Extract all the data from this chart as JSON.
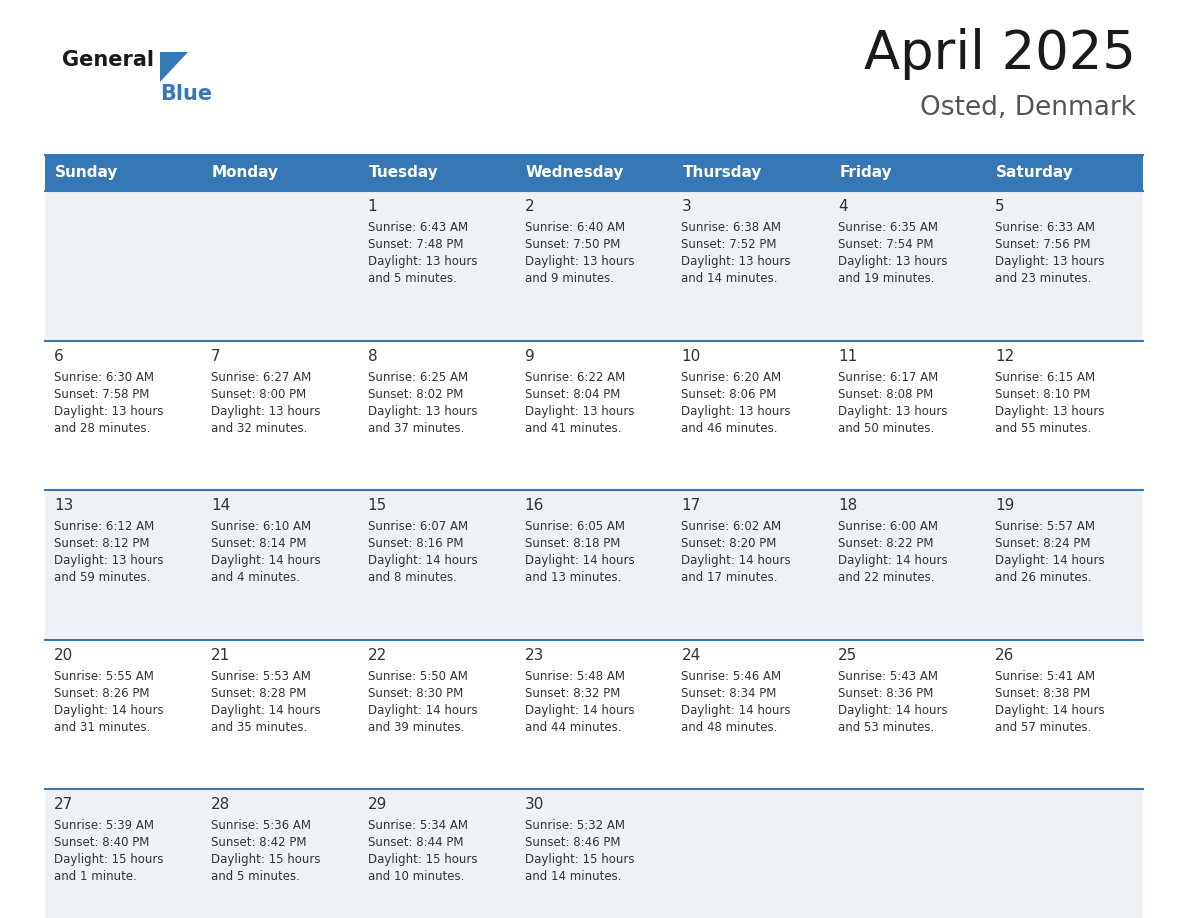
{
  "title": "April 2025",
  "subtitle": "Osted, Denmark",
  "header_bg_color": "#3578b5",
  "header_text_color": "#ffffff",
  "row_bg_even": "#eef2f7",
  "row_bg_odd": "#ffffff",
  "border_color": "#3578b5",
  "text_color": "#333333",
  "day_headers": [
    "Sunday",
    "Monday",
    "Tuesday",
    "Wednesday",
    "Thursday",
    "Friday",
    "Saturday"
  ],
  "weeks": [
    [
      {
        "day": "",
        "sunrise": "",
        "sunset": "",
        "daylight": ""
      },
      {
        "day": "",
        "sunrise": "",
        "sunset": "",
        "daylight": ""
      },
      {
        "day": "1",
        "sunrise": "Sunrise: 6:43 AM",
        "sunset": "Sunset: 7:48 PM",
        "daylight": "Daylight: 13 hours\nand 5 minutes."
      },
      {
        "day": "2",
        "sunrise": "Sunrise: 6:40 AM",
        "sunset": "Sunset: 7:50 PM",
        "daylight": "Daylight: 13 hours\nand 9 minutes."
      },
      {
        "day": "3",
        "sunrise": "Sunrise: 6:38 AM",
        "sunset": "Sunset: 7:52 PM",
        "daylight": "Daylight: 13 hours\nand 14 minutes."
      },
      {
        "day": "4",
        "sunrise": "Sunrise: 6:35 AM",
        "sunset": "Sunset: 7:54 PM",
        "daylight": "Daylight: 13 hours\nand 19 minutes."
      },
      {
        "day": "5",
        "sunrise": "Sunrise: 6:33 AM",
        "sunset": "Sunset: 7:56 PM",
        "daylight": "Daylight: 13 hours\nand 23 minutes."
      }
    ],
    [
      {
        "day": "6",
        "sunrise": "Sunrise: 6:30 AM",
        "sunset": "Sunset: 7:58 PM",
        "daylight": "Daylight: 13 hours\nand 28 minutes."
      },
      {
        "day": "7",
        "sunrise": "Sunrise: 6:27 AM",
        "sunset": "Sunset: 8:00 PM",
        "daylight": "Daylight: 13 hours\nand 32 minutes."
      },
      {
        "day": "8",
        "sunrise": "Sunrise: 6:25 AM",
        "sunset": "Sunset: 8:02 PM",
        "daylight": "Daylight: 13 hours\nand 37 minutes."
      },
      {
        "day": "9",
        "sunrise": "Sunrise: 6:22 AM",
        "sunset": "Sunset: 8:04 PM",
        "daylight": "Daylight: 13 hours\nand 41 minutes."
      },
      {
        "day": "10",
        "sunrise": "Sunrise: 6:20 AM",
        "sunset": "Sunset: 8:06 PM",
        "daylight": "Daylight: 13 hours\nand 46 minutes."
      },
      {
        "day": "11",
        "sunrise": "Sunrise: 6:17 AM",
        "sunset": "Sunset: 8:08 PM",
        "daylight": "Daylight: 13 hours\nand 50 minutes."
      },
      {
        "day": "12",
        "sunrise": "Sunrise: 6:15 AM",
        "sunset": "Sunset: 8:10 PM",
        "daylight": "Daylight: 13 hours\nand 55 minutes."
      }
    ],
    [
      {
        "day": "13",
        "sunrise": "Sunrise: 6:12 AM",
        "sunset": "Sunset: 8:12 PM",
        "daylight": "Daylight: 13 hours\nand 59 minutes."
      },
      {
        "day": "14",
        "sunrise": "Sunrise: 6:10 AM",
        "sunset": "Sunset: 8:14 PM",
        "daylight": "Daylight: 14 hours\nand 4 minutes."
      },
      {
        "day": "15",
        "sunrise": "Sunrise: 6:07 AM",
        "sunset": "Sunset: 8:16 PM",
        "daylight": "Daylight: 14 hours\nand 8 minutes."
      },
      {
        "day": "16",
        "sunrise": "Sunrise: 6:05 AM",
        "sunset": "Sunset: 8:18 PM",
        "daylight": "Daylight: 14 hours\nand 13 minutes."
      },
      {
        "day": "17",
        "sunrise": "Sunrise: 6:02 AM",
        "sunset": "Sunset: 8:20 PM",
        "daylight": "Daylight: 14 hours\nand 17 minutes."
      },
      {
        "day": "18",
        "sunrise": "Sunrise: 6:00 AM",
        "sunset": "Sunset: 8:22 PM",
        "daylight": "Daylight: 14 hours\nand 22 minutes."
      },
      {
        "day": "19",
        "sunrise": "Sunrise: 5:57 AM",
        "sunset": "Sunset: 8:24 PM",
        "daylight": "Daylight: 14 hours\nand 26 minutes."
      }
    ],
    [
      {
        "day": "20",
        "sunrise": "Sunrise: 5:55 AM",
        "sunset": "Sunset: 8:26 PM",
        "daylight": "Daylight: 14 hours\nand 31 minutes."
      },
      {
        "day": "21",
        "sunrise": "Sunrise: 5:53 AM",
        "sunset": "Sunset: 8:28 PM",
        "daylight": "Daylight: 14 hours\nand 35 minutes."
      },
      {
        "day": "22",
        "sunrise": "Sunrise: 5:50 AM",
        "sunset": "Sunset: 8:30 PM",
        "daylight": "Daylight: 14 hours\nand 39 minutes."
      },
      {
        "day": "23",
        "sunrise": "Sunrise: 5:48 AM",
        "sunset": "Sunset: 8:32 PM",
        "daylight": "Daylight: 14 hours\nand 44 minutes."
      },
      {
        "day": "24",
        "sunrise": "Sunrise: 5:46 AM",
        "sunset": "Sunset: 8:34 PM",
        "daylight": "Daylight: 14 hours\nand 48 minutes."
      },
      {
        "day": "25",
        "sunrise": "Sunrise: 5:43 AM",
        "sunset": "Sunset: 8:36 PM",
        "daylight": "Daylight: 14 hours\nand 53 minutes."
      },
      {
        "day": "26",
        "sunrise": "Sunrise: 5:41 AM",
        "sunset": "Sunset: 8:38 PM",
        "daylight": "Daylight: 14 hours\nand 57 minutes."
      }
    ],
    [
      {
        "day": "27",
        "sunrise": "Sunrise: 5:39 AM",
        "sunset": "Sunset: 8:40 PM",
        "daylight": "Daylight: 15 hours\nand 1 minute."
      },
      {
        "day": "28",
        "sunrise": "Sunrise: 5:36 AM",
        "sunset": "Sunset: 8:42 PM",
        "daylight": "Daylight: 15 hours\nand 5 minutes."
      },
      {
        "day": "29",
        "sunrise": "Sunrise: 5:34 AM",
        "sunset": "Sunset: 8:44 PM",
        "daylight": "Daylight: 15 hours\nand 10 minutes."
      },
      {
        "day": "30",
        "sunrise": "Sunrise: 5:32 AM",
        "sunset": "Sunset: 8:46 PM",
        "daylight": "Daylight: 15 hours\nand 14 minutes."
      },
      {
        "day": "",
        "sunrise": "",
        "sunset": "",
        "daylight": ""
      },
      {
        "day": "",
        "sunrise": "",
        "sunset": "",
        "daylight": ""
      },
      {
        "day": "",
        "sunrise": "",
        "sunset": "",
        "daylight": ""
      }
    ]
  ],
  "logo_general_color": "#1a1a1a",
  "logo_blue_color": "#3578b5",
  "logo_triangle_color": "#3578b5",
  "title_color": "#1a1a1a",
  "subtitle_color": "#555555"
}
